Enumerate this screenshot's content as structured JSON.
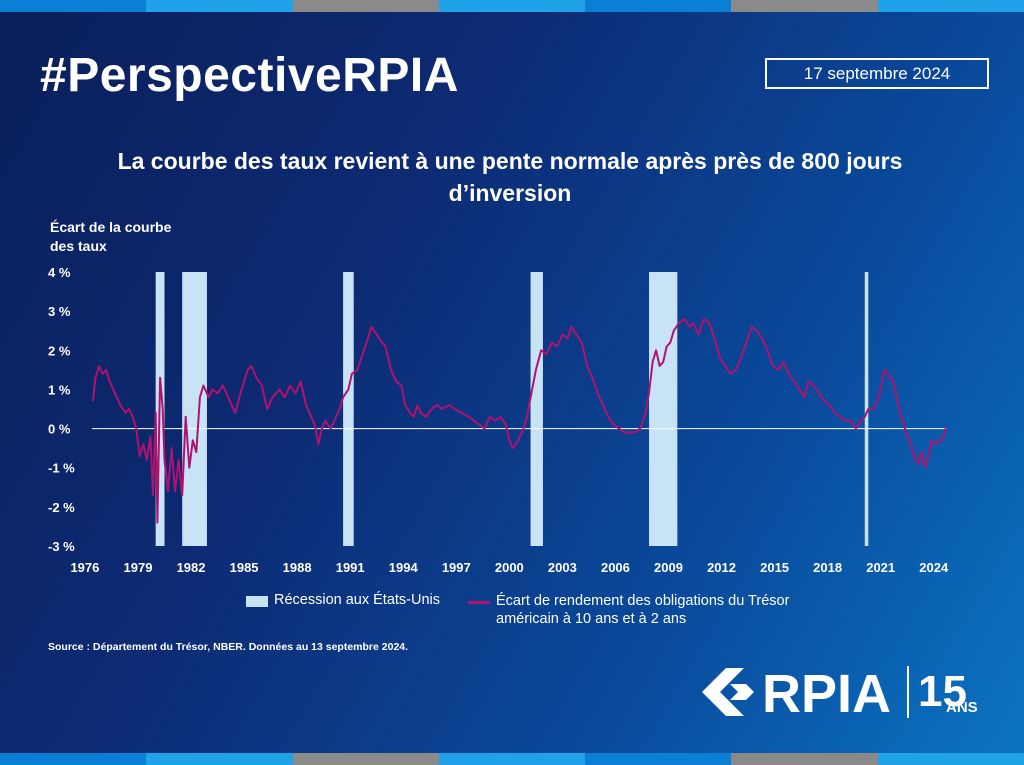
{
  "header": {
    "hashtag": "#PerspectiveRPIA",
    "date": "17 septembre 2024",
    "stripe_colors": [
      "#0b7fd6",
      "#1fa2e8",
      "#8a8a8a",
      "#1fa2e8",
      "#0b7fd6",
      "#8a8a8a",
      "#1fa2e8"
    ]
  },
  "chart_title": "La courbe des taux revient à une pente normale après près de 800 jours d’inversion",
  "ylabel": "Écart de la courbe des taux",
  "legend": {
    "recession_label": "Récession aux États-Unis",
    "spread_label": "Écart de rendement des obligations du Trésor américain à 10 ans et à 2 ans"
  },
  "source": "Source : Département du Trésor, NBER. Données au 13 septembre 2024.",
  "logo": {
    "brand": "RPIA",
    "anniversary_number": "15",
    "anniversary_word": "ANS"
  },
  "colors": {
    "line": "#b0136e",
    "recession": "#c8e3f5",
    "zero_line": "#ffffff"
  },
  "chart_data": {
    "type": "line",
    "title": "La courbe des taux revient à une pente normale après près de 800 jours d’inversion",
    "ylabel": "Écart de la courbe des taux",
    "xlim": [
      1976.4,
      2024.75
    ],
    "ylim": [
      -3,
      4
    ],
    "x_ticks": [
      1976,
      1979,
      1982,
      1985,
      1988,
      1991,
      1994,
      1997,
      2000,
      2003,
      2006,
      2009,
      2012,
      2015,
      2018,
      2021,
      2024
    ],
    "y_ticks": [
      {
        "value": 4,
        "label": "4 %"
      },
      {
        "value": 3,
        "label": "3 %"
      },
      {
        "value": 2,
        "label": "2 %"
      },
      {
        "value": 1,
        "label": "1 %"
      },
      {
        "value": 0,
        "label": "0 %"
      },
      {
        "value": -1,
        "label": "-1 %"
      },
      {
        "value": -2,
        "label": "-2 %"
      },
      {
        "value": -3,
        "label": "-3 %"
      }
    ],
    "recessions": [
      [
        1980.0,
        1980.5
      ],
      [
        1981.5,
        1982.9
      ],
      [
        1990.6,
        1991.2
      ],
      [
        2001.2,
        2001.9
      ],
      [
        2007.9,
        2009.5
      ],
      [
        2020.1,
        2020.3
      ]
    ],
    "series": [
      {
        "name": "Écart de rendement des obligations du Trésor américain à 10 ans et à 2 ans",
        "points": [
          [
            1976.45,
            0.7
          ],
          [
            1976.6,
            1.3
          ],
          [
            1976.8,
            1.6
          ],
          [
            1977.0,
            1.4
          ],
          [
            1977.2,
            1.5
          ],
          [
            1977.4,
            1.2
          ],
          [
            1977.7,
            0.9
          ],
          [
            1978.0,
            0.6
          ],
          [
            1978.3,
            0.4
          ],
          [
            1978.5,
            0.5
          ],
          [
            1978.7,
            0.3
          ],
          [
            1978.9,
            0.0
          ],
          [
            1979.1,
            -0.7
          ],
          [
            1979.3,
            -0.4
          ],
          [
            1979.5,
            -0.8
          ],
          [
            1979.7,
            -0.2
          ],
          [
            1979.85,
            -1.7
          ],
          [
            1980.0,
            0.4
          ],
          [
            1980.1,
            -2.4
          ],
          [
            1980.25,
            1.3
          ],
          [
            1980.4,
            0.5
          ],
          [
            1980.5,
            -0.8
          ],
          [
            1980.7,
            -1.6
          ],
          [
            1980.9,
            -0.5
          ],
          [
            1981.1,
            -1.6
          ],
          [
            1981.3,
            -0.8
          ],
          [
            1981.5,
            -1.7
          ],
          [
            1981.7,
            0.3
          ],
          [
            1981.9,
            -1.0
          ],
          [
            1982.1,
            -0.3
          ],
          [
            1982.3,
            -0.6
          ],
          [
            1982.5,
            0.8
          ],
          [
            1982.7,
            1.1
          ],
          [
            1983.0,
            0.8
          ],
          [
            1983.2,
            1.0
          ],
          [
            1983.5,
            0.9
          ],
          [
            1983.8,
            1.1
          ],
          [
            1984.0,
            0.9
          ],
          [
            1984.3,
            0.6
          ],
          [
            1984.5,
            0.4
          ],
          [
            1984.8,
            0.9
          ],
          [
            1985.0,
            1.2
          ],
          [
            1985.2,
            1.5
          ],
          [
            1985.4,
            1.6
          ],
          [
            1985.7,
            1.3
          ],
          [
            1986.0,
            1.1
          ],
          [
            1986.3,
            0.5
          ],
          [
            1986.6,
            0.8
          ],
          [
            1987.0,
            1.0
          ],
          [
            1987.3,
            0.8
          ],
          [
            1987.6,
            1.1
          ],
          [
            1987.9,
            0.9
          ],
          [
            1988.2,
            1.2
          ],
          [
            1988.5,
            0.6
          ],
          [
            1988.8,
            0.3
          ],
          [
            1989.0,
            0.1
          ],
          [
            1989.2,
            -0.4
          ],
          [
            1989.4,
            0.0
          ],
          [
            1989.6,
            0.2
          ],
          [
            1989.9,
            0.0
          ],
          [
            1990.1,
            0.2
          ],
          [
            1990.4,
            0.5
          ],
          [
            1990.6,
            0.8
          ],
          [
            1990.9,
            1.0
          ],
          [
            1991.1,
            1.4
          ],
          [
            1991.4,
            1.5
          ],
          [
            1991.7,
            1.9
          ],
          [
            1992.0,
            2.3
          ],
          [
            1992.2,
            2.6
          ],
          [
            1992.5,
            2.4
          ],
          [
            1992.8,
            2.2
          ],
          [
            1993.0,
            2.1
          ],
          [
            1993.3,
            1.5
          ],
          [
            1993.6,
            1.2
          ],
          [
            1993.9,
            1.1
          ],
          [
            1994.1,
            0.6
          ],
          [
            1994.4,
            0.4
          ],
          [
            1994.6,
            0.3
          ],
          [
            1994.8,
            0.6
          ],
          [
            1995.0,
            0.4
          ],
          [
            1995.3,
            0.3
          ],
          [
            1995.6,
            0.5
          ],
          [
            1995.9,
            0.6
          ],
          [
            1996.2,
            0.5
          ],
          [
            1996.6,
            0.6
          ],
          [
            1996.9,
            0.5
          ],
          [
            1997.3,
            0.4
          ],
          [
            1997.7,
            0.3
          ],
          [
            1998.0,
            0.2
          ],
          [
            1998.3,
            0.1
          ],
          [
            1998.6,
            0.0
          ],
          [
            1998.9,
            0.3
          ],
          [
            1999.2,
            0.2
          ],
          [
            1999.5,
            0.3
          ],
          [
            1999.8,
            0.1
          ],
          [
            2000.0,
            -0.3
          ],
          [
            2000.2,
            -0.5
          ],
          [
            2000.5,
            -0.3
          ],
          [
            2000.8,
            0.0
          ],
          [
            2001.0,
            0.3
          ],
          [
            2001.2,
            0.8
          ],
          [
            2001.5,
            1.5
          ],
          [
            2001.8,
            2.0
          ],
          [
            2002.1,
            1.9
          ],
          [
            2002.4,
            2.2
          ],
          [
            2002.7,
            2.1
          ],
          [
            2003.0,
            2.4
          ],
          [
            2003.3,
            2.3
          ],
          [
            2003.5,
            2.6
          ],
          [
            2003.8,
            2.4
          ],
          [
            2004.1,
            2.2
          ],
          [
            2004.4,
            1.6
          ],
          [
            2004.7,
            1.3
          ],
          [
            2005.0,
            0.9
          ],
          [
            2005.3,
            0.6
          ],
          [
            2005.6,
            0.3
          ],
          [
            2005.9,
            0.1
          ],
          [
            2006.2,
            0.0
          ],
          [
            2006.5,
            -0.1
          ],
          [
            2006.8,
            -0.1
          ],
          [
            2007.1,
            -0.1
          ],
          [
            2007.4,
            0.0
          ],
          [
            2007.7,
            0.4
          ],
          [
            2007.9,
            0.9
          ],
          [
            2008.1,
            1.7
          ],
          [
            2008.3,
            2.0
          ],
          [
            2008.5,
            1.6
          ],
          [
            2008.7,
            1.7
          ],
          [
            2008.9,
            2.1
          ],
          [
            2009.1,
            2.2
          ],
          [
            2009.3,
            2.5
          ],
          [
            2009.6,
            2.7
          ],
          [
            2009.9,
            2.8
          ],
          [
            2010.2,
            2.6
          ],
          [
            2010.4,
            2.7
          ],
          [
            2010.7,
            2.4
          ],
          [
            2011.0,
            2.8
          ],
          [
            2011.3,
            2.7
          ],
          [
            2011.6,
            2.3
          ],
          [
            2011.9,
            1.8
          ],
          [
            2012.2,
            1.6
          ],
          [
            2012.5,
            1.4
          ],
          [
            2012.8,
            1.5
          ],
          [
            2013.1,
            1.8
          ],
          [
            2013.4,
            2.2
          ],
          [
            2013.7,
            2.6
          ],
          [
            2014.0,
            2.5
          ],
          [
            2014.3,
            2.3
          ],
          [
            2014.6,
            2.0
          ],
          [
            2014.9,
            1.6
          ],
          [
            2015.2,
            1.5
          ],
          [
            2015.5,
            1.7
          ],
          [
            2015.8,
            1.4
          ],
          [
            2016.1,
            1.2
          ],
          [
            2016.4,
            1.0
          ],
          [
            2016.7,
            0.8
          ],
          [
            2016.9,
            1.2
          ],
          [
            2017.2,
            1.1
          ],
          [
            2017.5,
            0.9
          ],
          [
            2017.8,
            0.7
          ],
          [
            2018.1,
            0.6
          ],
          [
            2018.4,
            0.4
          ],
          [
            2018.7,
            0.3
          ],
          [
            2019.0,
            0.2
          ],
          [
            2019.3,
            0.2
          ],
          [
            2019.6,
            0.0
          ],
          [
            2019.9,
            0.2
          ],
          [
            2020.1,
            0.3
          ],
          [
            2020.3,
            0.5
          ],
          [
            2020.6,
            0.5
          ],
          [
            2020.9,
            0.8
          ],
          [
            2021.2,
            1.5
          ],
          [
            2021.4,
            1.4
          ],
          [
            2021.7,
            1.2
          ],
          [
            2021.9,
            0.8
          ],
          [
            2022.1,
            0.4
          ],
          [
            2022.3,
            0.1
          ],
          [
            2022.5,
            -0.2
          ],
          [
            2022.7,
            -0.4
          ],
          [
            2022.9,
            -0.7
          ],
          [
            2023.1,
            -0.9
          ],
          [
            2023.3,
            -0.6
          ],
          [
            2023.5,
            -1.0
          ],
          [
            2023.7,
            -0.7
          ],
          [
            2023.9,
            -0.3
          ],
          [
            2024.1,
            -0.4
          ],
          [
            2024.3,
            -0.3
          ],
          [
            2024.5,
            -0.3
          ],
          [
            2024.7,
            0.05
          ]
        ]
      }
    ]
  }
}
